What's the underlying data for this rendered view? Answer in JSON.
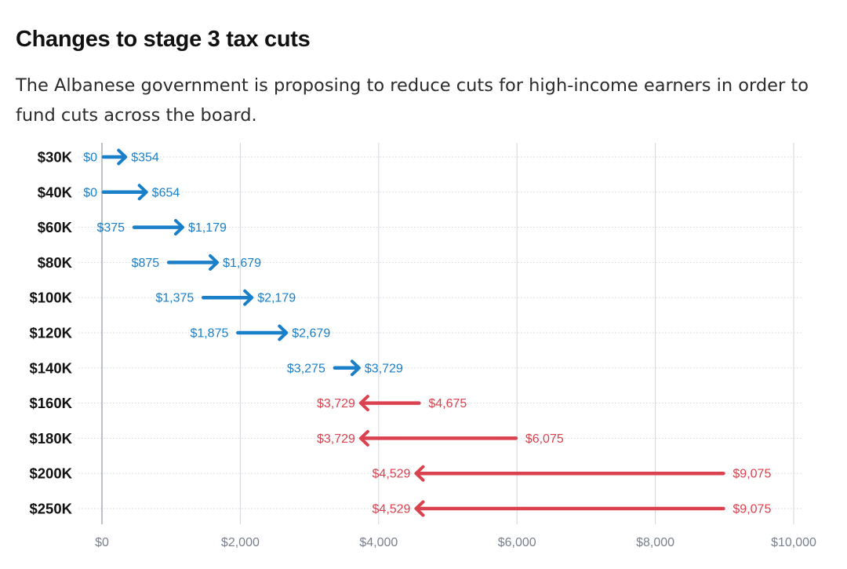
{
  "title": "Changes to stage 3 tax cuts",
  "subtitle": "The Albanese government is proposing to reduce cuts for high-income earners in order to fund cuts across the board.",
  "colors": {
    "increase": "#1a7fc9",
    "decrease": "#d9424e",
    "grid": "#d3d6dd",
    "axis_text": "#7a7f8c",
    "category_text": "#111111"
  },
  "chart_data": {
    "type": "arrow",
    "title": "Changes to stage 3 tax cuts",
    "subtitle": "The Albanese government is proposing to reduce cuts for high-income earners in order to fund cuts across the board.",
    "xlabel": "",
    "ylabel": "",
    "xlim": [
      0,
      10000
    ],
    "x_ticks": [
      0,
      2000,
      4000,
      6000,
      8000,
      10000
    ],
    "x_tick_labels": [
      "$0",
      "$2,000",
      "$4,000",
      "$6,000",
      "$8,000",
      "$10,000"
    ],
    "grid": true,
    "categories": [
      "$30K",
      "$40K",
      "$60K",
      "$80K",
      "$100K",
      "$120K",
      "$140K",
      "$160K",
      "$180K",
      "$200K",
      "$250K"
    ],
    "from": [
      0,
      0,
      375,
      875,
      1375,
      1875,
      3275,
      4675,
      6075,
      9075,
      9075
    ],
    "to": [
      354,
      654,
      1179,
      1679,
      2179,
      2679,
      3729,
      3729,
      3729,
      4529,
      4529
    ],
    "from_labels": [
      "$0",
      "$0",
      "$375",
      "$875",
      "$1,375",
      "$1,875",
      "$3,275",
      "$4,675",
      "$6,075",
      "$9,075",
      "$9,075"
    ],
    "to_labels": [
      "$354",
      "$654",
      "$1,179",
      "$1,679",
      "$2,179",
      "$2,679",
      "$3,729",
      "$3,729",
      "$3,729",
      "$4,529",
      "$4,529"
    ]
  }
}
